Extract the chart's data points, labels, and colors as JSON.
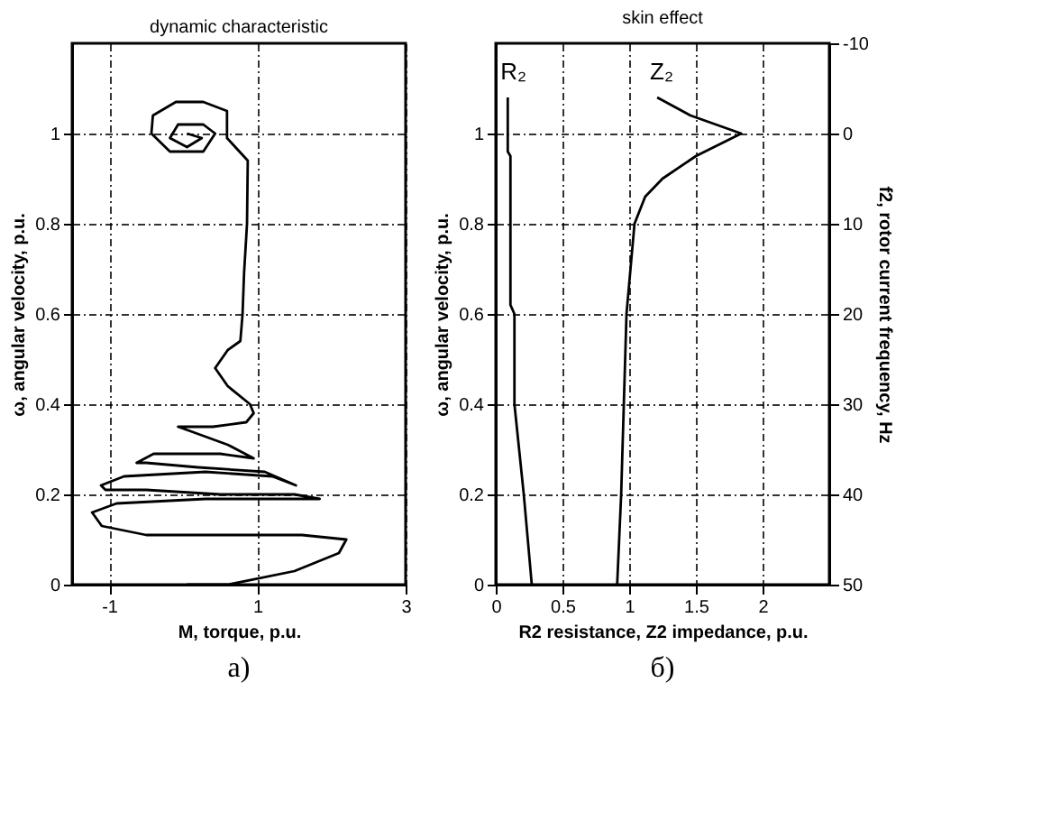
{
  "chart_data": [
    {
      "type": "line",
      "title": "dynamic characteristic",
      "xlabel": "M, torque, p.u.",
      "ylabel": "ω, angular velocity, p.u.",
      "xlim": [
        -1.5,
        3
      ],
      "xticks": [
        -1,
        1,
        3
      ],
      "ylim": [
        0,
        1.2
      ],
      "yticks": [
        0,
        0.2,
        0.4,
        0.6,
        0.8,
        1
      ],
      "grid": true,
      "annotations": [
        "a)"
      ],
      "series": [
        {
          "color": "#000000",
          "x": [
            0.05,
            0.6,
            1.5,
            2.1,
            2.2,
            1.6,
            0.5,
            -0.5,
            -1.1,
            -1.23,
            -0.9,
            0.3,
            1.3,
            1.84,
            1.5,
            0.5,
            -0.5,
            -1.05,
            -1.11,
            -0.8,
            0.3,
            1.2,
            1.52,
            1.1,
            0.2,
            -0.5,
            -0.63,
            -0.4,
            0.5,
            0.95,
            0.6,
            0.1,
            -0.07,
            0.4,
            0.85,
            0.95,
            0.9,
            0.6,
            0.43,
            0.6,
            0.77,
            0.8,
            0.82,
            0.86,
            0.87,
            0.59,
            0.59,
            0.27,
            -0.1,
            -0.41,
            -0.43,
            -0.18,
            0.27,
            0.43,
            0.27,
            -0.07,
            -0.18,
            0.05,
            0.25,
            0.05
          ],
          "values": [
            0.0,
            0.0,
            0.03,
            0.07,
            0.1,
            0.11,
            0.11,
            0.11,
            0.13,
            0.16,
            0.18,
            0.19,
            0.19,
            0.19,
            0.2,
            0.2,
            0.21,
            0.21,
            0.22,
            0.24,
            0.25,
            0.24,
            0.22,
            0.25,
            0.26,
            0.27,
            0.27,
            0.29,
            0.29,
            0.28,
            0.31,
            0.34,
            0.35,
            0.35,
            0.36,
            0.38,
            0.4,
            0.44,
            0.48,
            0.52,
            0.54,
            0.6,
            0.69,
            0.8,
            0.94,
            0.99,
            1.05,
            1.07,
            1.07,
            1.04,
            1.0,
            0.96,
            0.96,
            1.0,
            1.02,
            1.02,
            0.99,
            0.97,
            0.99,
            1.0
          ]
        }
      ]
    },
    {
      "type": "line",
      "title": "skin effect",
      "xlabel": "R2 resistance, Z2 impedance, p.u.",
      "ylabel": "ω, angular velocity, p.u.",
      "y2label": "f2, rotor current frequency, Hz",
      "xlim": [
        0,
        2.5
      ],
      "xticks": [
        0,
        0.5,
        1,
        1.5,
        2
      ],
      "ylim": [
        0,
        1.2
      ],
      "yticks": [
        0,
        0.2,
        0.4,
        0.6,
        0.8,
        1
      ],
      "y2lim": [
        50,
        -10
      ],
      "y2ticks": [
        -10,
        0,
        10,
        20,
        30,
        40,
        50
      ],
      "grid": true,
      "annotations": [
        "б)"
      ],
      "series": [
        {
          "name": "R₂",
          "color": "#000000",
          "x": [
            0.27,
            0.21,
            0.14,
            0.14,
            0.11,
            0.11,
            0.09,
            0.09
          ],
          "values": [
            0,
            0.2,
            0.4,
            0.6,
            0.62,
            0.95,
            0.96,
            1.08
          ]
        },
        {
          "name": "Z₂",
          "color": "#000000",
          "x": [
            0.91,
            0.94,
            0.96,
            0.98,
            1.04,
            1.12,
            1.25,
            1.5,
            1.84,
            1.46,
            1.21
          ],
          "values": [
            0,
            0.2,
            0.4,
            0.6,
            0.8,
            0.86,
            0.9,
            0.95,
            1.0,
            1.04,
            1.08
          ]
        }
      ]
    }
  ]
}
